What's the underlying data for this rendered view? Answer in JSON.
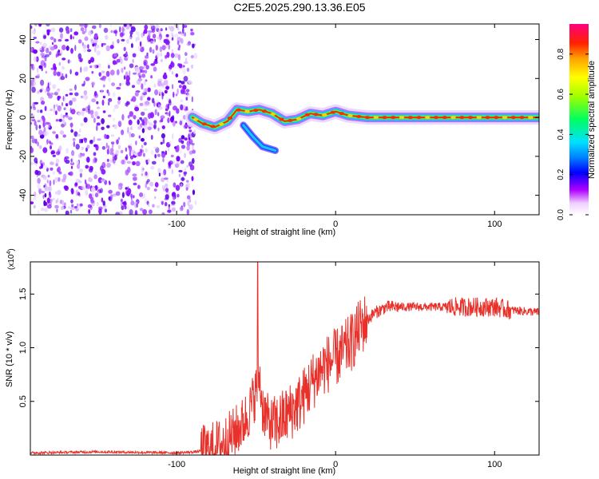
{
  "figure_title": "C2E5.2025.290.13.36.E05",
  "chart_data": [
    {
      "type": "heatmap",
      "xlabel": "Height of straight line (km)",
      "ylabel": "Frequency (Hz)",
      "xlim": [
        -192,
        128
      ],
      "ylim": [
        -50,
        48
      ],
      "x_ticks": [
        -100,
        0,
        100
      ],
      "x_tick_labels": [
        "-100",
        "0",
        "100"
      ],
      "y_ticks": [
        -40,
        -20,
        0,
        20,
        40
      ],
      "y_tick_labels": [
        "-40",
        "-20",
        "0",
        "20",
        "40"
      ],
      "colorbar": {
        "label": "Normalized spectral amplitude",
        "range": [
          0,
          0.95
        ],
        "ticks": [
          0,
          0.2,
          0.4,
          0.6,
          0.8
        ],
        "tick_labels": [
          "0.0",
          "0.2",
          "0.4",
          "0.6",
          "0.8"
        ]
      },
      "noise_region_x": [
        -192,
        -88
      ],
      "signal_trace": [
        {
          "x": -90,
          "y": 0
        },
        {
          "x": -84,
          "y": -3
        },
        {
          "x": -76,
          "y": -5
        },
        {
          "x": -68,
          "y": -2
        },
        {
          "x": -62,
          "y": 4
        },
        {
          "x": -55,
          "y": 3
        },
        {
          "x": -48,
          "y": 4
        },
        {
          "x": -40,
          "y": 2
        },
        {
          "x": -32,
          "y": -2
        },
        {
          "x": -24,
          "y": -1
        },
        {
          "x": -16,
          "y": 2
        },
        {
          "x": -8,
          "y": 1
        },
        {
          "x": 0,
          "y": 3
        },
        {
          "x": 8,
          "y": 1
        },
        {
          "x": 20,
          "y": 0
        },
        {
          "x": 60,
          "y": 0
        },
        {
          "x": 128,
          "y": 0
        }
      ],
      "branch_trace": [
        {
          "x": -58,
          "y": -4
        },
        {
          "x": -52,
          "y": -10
        },
        {
          "x": -46,
          "y": -15
        },
        {
          "x": -38,
          "y": -17
        }
      ]
    },
    {
      "type": "line",
      "xlabel": "Height of straight line (km)",
      "ylabel": "SNR (10 * v/v)",
      "y_multiplier": "(x10",
      "y_multiplier_exp": "4",
      "y_multiplier_close": ")",
      "xlim": [
        -192,
        128
      ],
      "ylim": [
        0,
        1.8
      ],
      "x_ticks": [
        -100,
        0,
        100
      ],
      "x_tick_labels": [
        "-100",
        "0",
        "100"
      ],
      "y_ticks": [
        0.5,
        1.0,
        1.5
      ],
      "y_tick_labels": [
        "0.5",
        "1.0",
        "1.5"
      ],
      "line_color": "#e8312a",
      "x": [
        -192,
        -150,
        -100,
        -88,
        -80,
        -72,
        -64,
        -58,
        -54,
        -50,
        -48,
        -46,
        -42,
        -38,
        -30,
        -22,
        -14,
        -8,
        -2,
        4,
        10,
        16,
        24,
        32,
        40,
        60,
        80,
        100,
        110,
        128
      ],
      "y": [
        0.02,
        0.03,
        0.02,
        0.03,
        0.05,
        0.1,
        0.2,
        0.3,
        0.42,
        0.6,
        0.75,
        0.45,
        0.3,
        0.28,
        0.38,
        0.5,
        0.7,
        0.82,
        0.88,
        0.95,
        1.05,
        1.2,
        1.32,
        1.38,
        1.38,
        1.38,
        1.38,
        1.38,
        1.35,
        1.33
      ],
      "spike": {
        "x": -49,
        "y": 1.8
      }
    }
  ]
}
